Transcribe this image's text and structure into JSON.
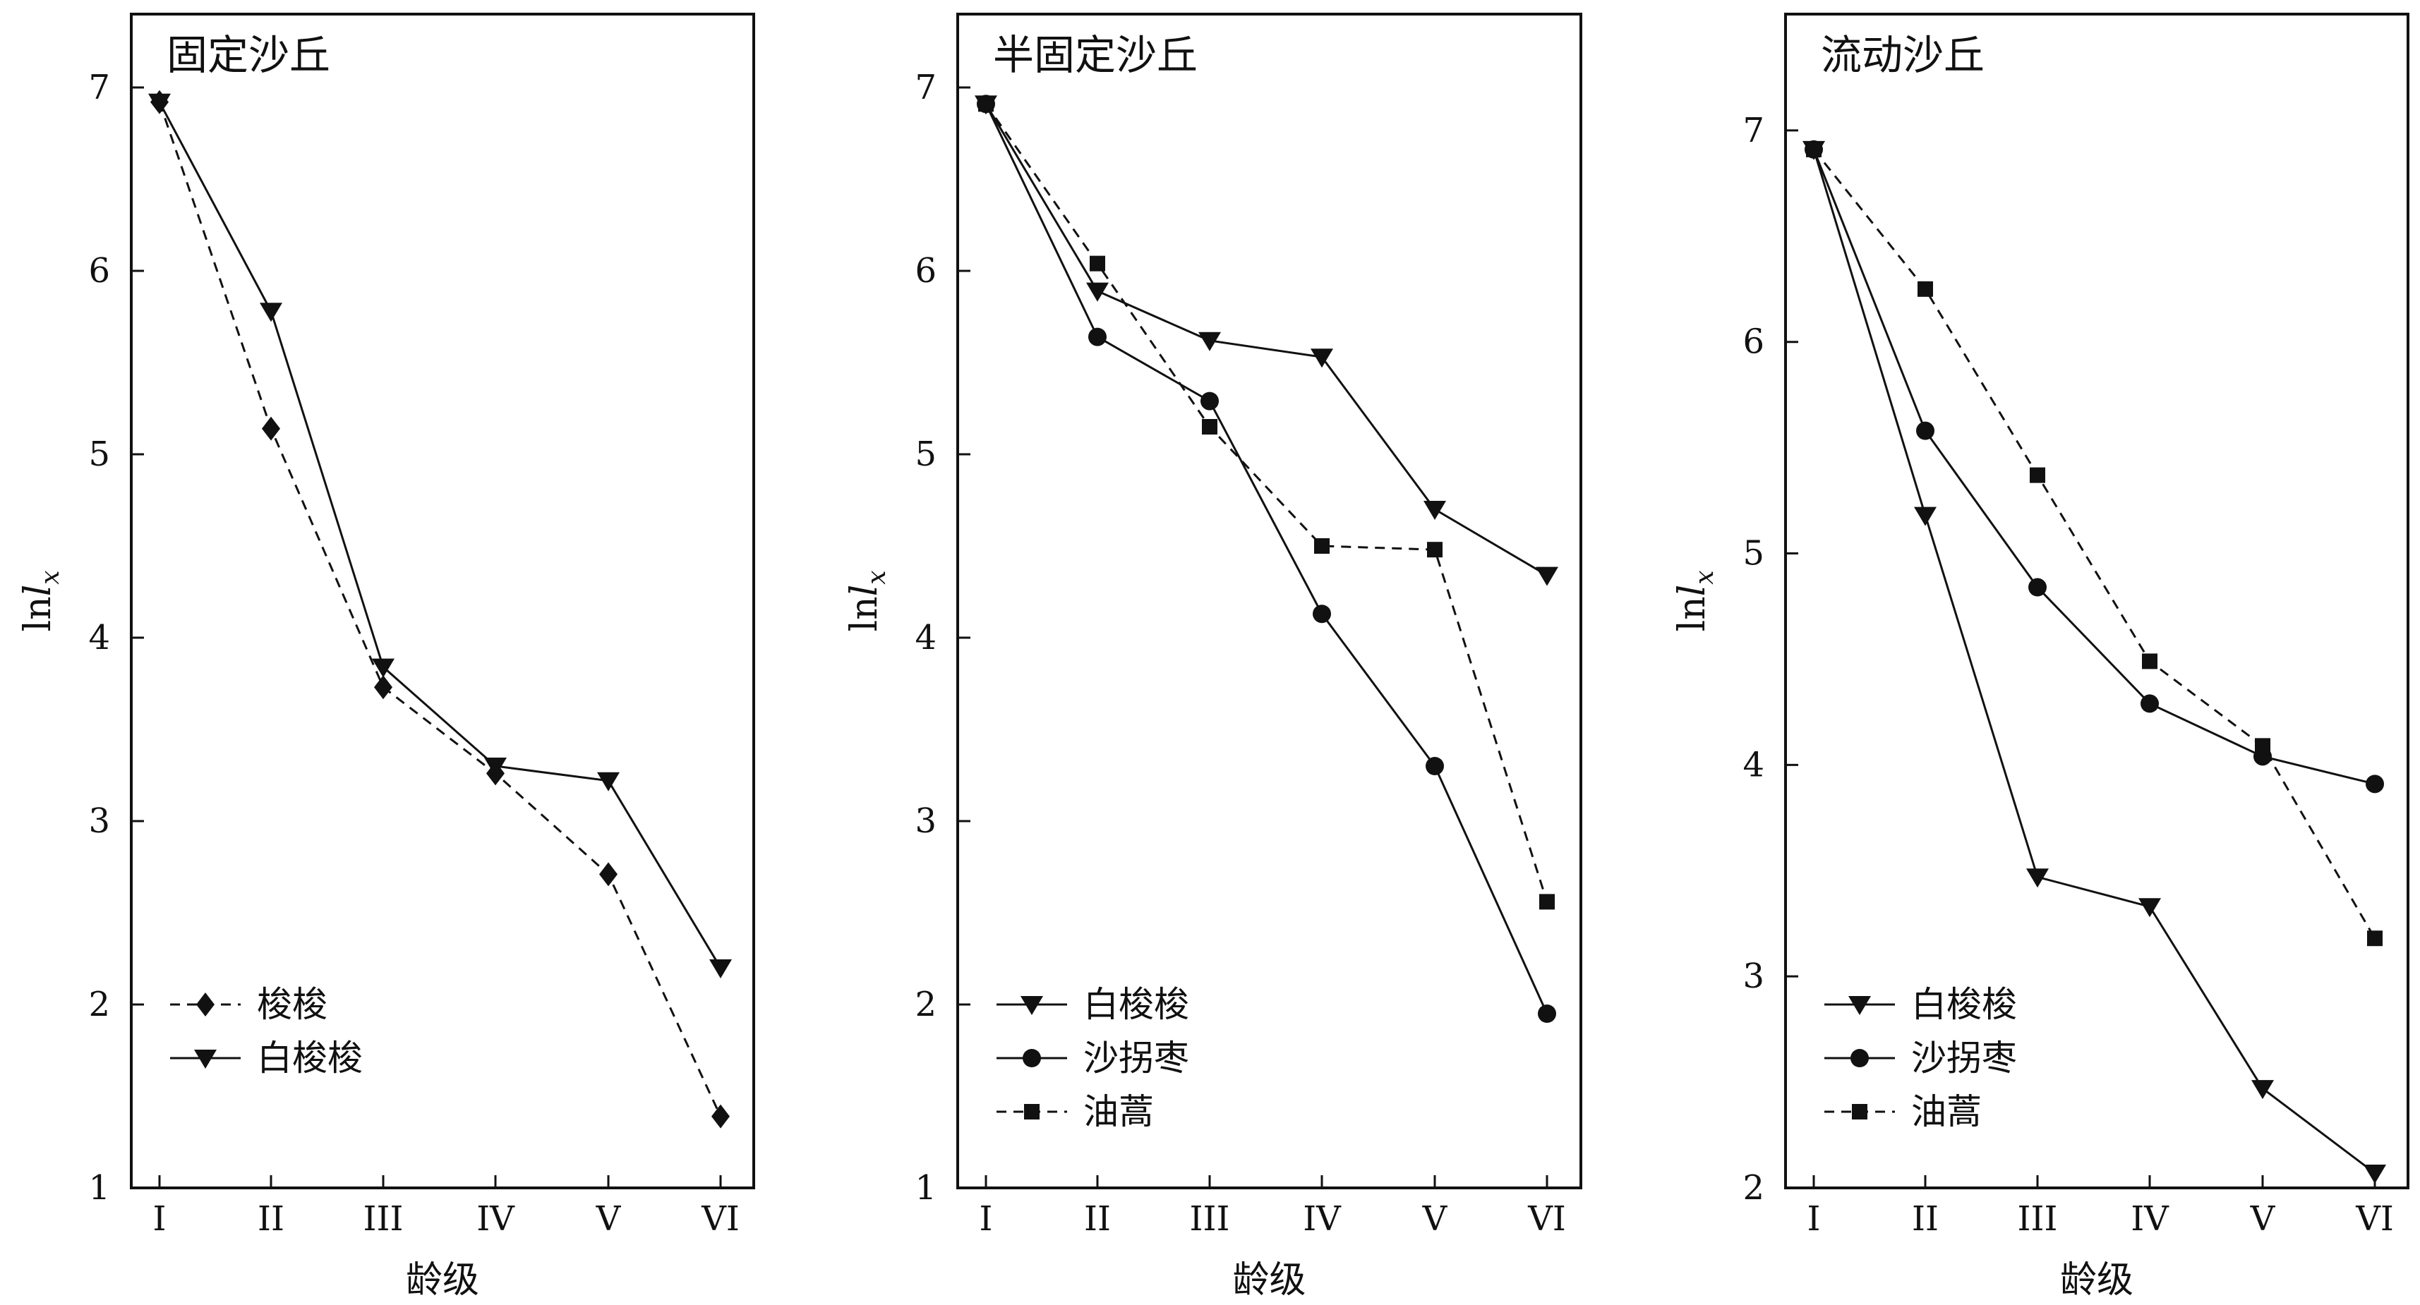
{
  "chart_data": [
    {
      "type": "line",
      "title": "固定沙丘",
      "xlabel": "龄级",
      "ylabel_base": "ln",
      "ylabel_var": "l",
      "ylabel_sub": "x",
      "categories": [
        "I",
        "II",
        "III",
        "IV",
        "V",
        "VI"
      ],
      "ylim": [
        1,
        7.4
      ],
      "yticks": [
        1,
        2,
        3,
        4,
        5,
        6,
        7
      ],
      "legend_position": "bottom-left",
      "series": [
        {
          "name": "梭梭",
          "marker": "diamond",
          "dash": "dashed",
          "values": [
            6.92,
            5.14,
            3.73,
            3.26,
            2.71,
            1.39
          ]
        },
        {
          "name": "白梭梭",
          "marker": "triangle-down",
          "dash": "solid",
          "values": [
            6.92,
            5.78,
            3.84,
            3.3,
            3.22,
            2.2
          ]
        }
      ]
    },
    {
      "type": "line",
      "title": "半固定沙丘",
      "xlabel": "龄级",
      "ylabel_base": "ln",
      "ylabel_var": "l",
      "ylabel_sub": "x",
      "categories": [
        "I",
        "II",
        "III",
        "IV",
        "V",
        "VI"
      ],
      "ylim": [
        1,
        7.4
      ],
      "yticks": [
        1,
        2,
        3,
        4,
        5,
        6,
        7
      ],
      "legend_position": "bottom-left",
      "series": [
        {
          "name": "白梭梭",
          "marker": "triangle-down",
          "dash": "solid",
          "values": [
            6.91,
            5.89,
            5.62,
            5.53,
            4.7,
            4.34
          ]
        },
        {
          "name": "沙拐枣",
          "marker": "circle",
          "dash": "solid",
          "values": [
            6.91,
            5.64,
            5.29,
            4.13,
            3.3,
            1.95
          ]
        },
        {
          "name": "油蒿",
          "marker": "square",
          "dash": "dashed",
          "values": [
            6.91,
            6.04,
            5.15,
            4.5,
            4.48,
            2.56
          ]
        }
      ]
    },
    {
      "type": "line",
      "title": "流动沙丘",
      "xlabel": "龄级",
      "ylabel_base": "ln",
      "ylabel_var": "l",
      "ylabel_sub": "x",
      "categories": [
        "I",
        "II",
        "III",
        "IV",
        "V",
        "VI"
      ],
      "ylim": [
        2,
        7.55
      ],
      "yticks": [
        2,
        3,
        4,
        5,
        6,
        7
      ],
      "legend_position": "bottom-left",
      "series": [
        {
          "name": "白梭梭",
          "marker": "triangle-down",
          "dash": "solid",
          "values": [
            6.91,
            5.18,
            3.47,
            3.33,
            2.47,
            2.07
          ]
        },
        {
          "name": "沙拐枣",
          "marker": "circle",
          "dash": "solid",
          "values": [
            6.91,
            5.58,
            4.84,
            4.29,
            4.04,
            3.91
          ]
        },
        {
          "name": "油蒿",
          "marker": "square",
          "dash": "dashed",
          "values": [
            6.91,
            6.25,
            5.37,
            4.49,
            4.09,
            3.18
          ]
        }
      ]
    }
  ]
}
